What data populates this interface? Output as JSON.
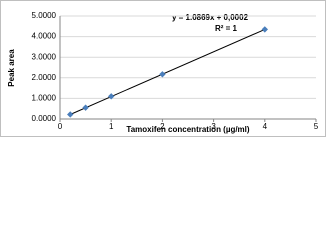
{
  "chart_data": {
    "type": "scatter",
    "x_label": "Tamoxifen concentration (µg/ml)",
    "y_label": "Peak area",
    "annotations": [
      "y = 1.0869x + 0,0002",
      "R² = 1"
    ],
    "series": [
      {
        "color": "#4a7ebb",
        "x": [
          0.2,
          0.5,
          1,
          2,
          4
        ],
        "values": [
          0.22,
          0.55,
          1.1,
          2.17,
          4.35
        ]
      }
    ],
    "trendline": {
      "slope": 1.0869,
      "intercept": 0.0002,
      "color": "#000000"
    },
    "xlim": [
      0,
      5
    ],
    "xticks": [
      0,
      1,
      2,
      3,
      4,
      5
    ],
    "ylim": [
      0,
      5
    ],
    "yticks": [
      {
        "value": 0,
        "label": "0.0000"
      },
      {
        "value": 1,
        "label": "1.0000"
      },
      {
        "value": 2,
        "label": "2.0000"
      },
      {
        "value": 3,
        "label": "3.0000"
      },
      {
        "value": 4,
        "label": "4.0000"
      },
      {
        "value": 5,
        "label": "5.0000"
      }
    ],
    "grid": true
  }
}
